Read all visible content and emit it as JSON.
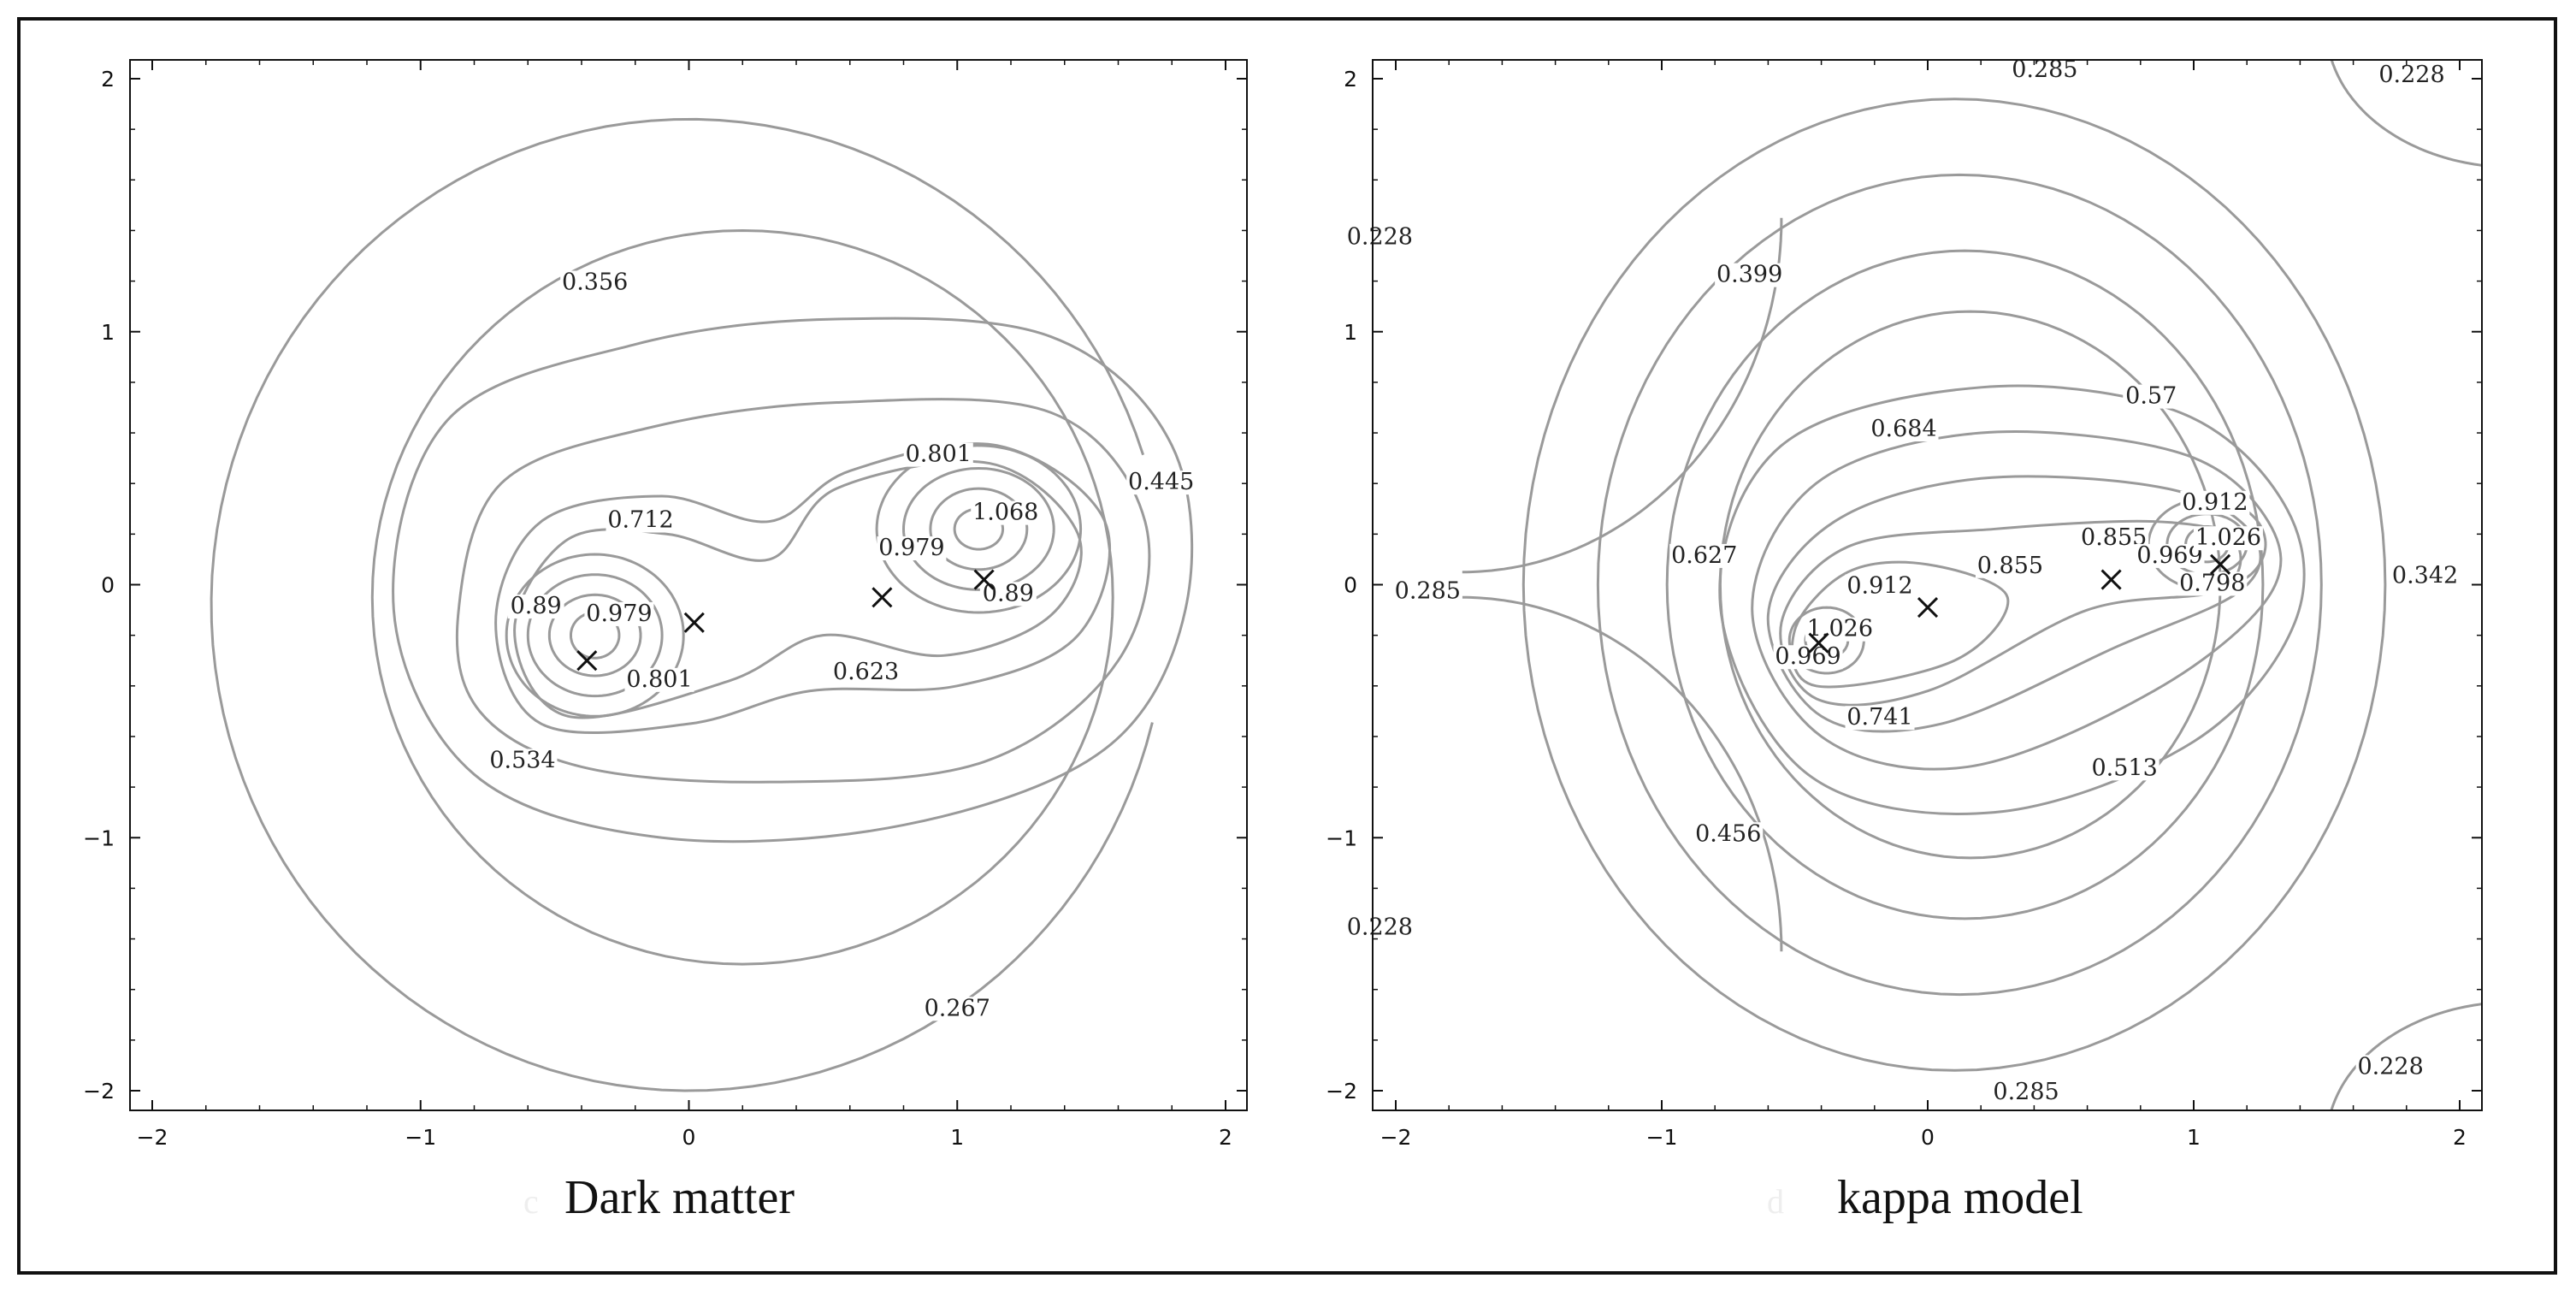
{
  "chart_data": [
    {
      "type": "contour",
      "title": "Dark matter",
      "panel_letter": "c",
      "xlim": [
        -2,
        2
      ],
      "ylim": [
        -2,
        2
      ],
      "xticks": [
        -2,
        -1,
        0,
        1,
        2
      ],
      "yticks": [
        -2,
        -1,
        0,
        1,
        2
      ],
      "xtick_labels": [
        "−2",
        "−1",
        "0",
        "1",
        "2"
      ],
      "ytick_labels": [
        "−2",
        "−1",
        "0",
        "1",
        "2"
      ],
      "grid": false,
      "contour_levels": [
        "0.267",
        "0.356",
        "0.445",
        "0.534",
        "0.623",
        "0.712",
        "0.801",
        "0.89",
        "0.979",
        "1.068"
      ],
      "contour_labels": [
        {
          "text": "0.356",
          "x": -0.35,
          "y": 1.18
        },
        {
          "text": "0.445",
          "x": 1.76,
          "y": 0.39
        },
        {
          "text": "0.801",
          "x": 0.93,
          "y": 0.5
        },
        {
          "text": "1.068",
          "x": 1.18,
          "y": 0.27
        },
        {
          "text": "0.712",
          "x": -0.18,
          "y": 0.24
        },
        {
          "text": "0.979",
          "x": 0.83,
          "y": 0.13
        },
        {
          "text": "0.89",
          "x": -0.57,
          "y": -0.1
        },
        {
          "text": "0.979",
          "x": -0.26,
          "y": -0.13
        },
        {
          "text": "0.89",
          "x": 1.19,
          "y": -0.05
        },
        {
          "text": "0.801",
          "x": -0.11,
          "y": -0.39
        },
        {
          "text": "0.623",
          "x": 0.66,
          "y": -0.36
        },
        {
          "text": "0.534",
          "x": -0.62,
          "y": -0.71
        },
        {
          "text": "0.267",
          "x": 1.0,
          "y": -1.69
        }
      ],
      "markers": [
        {
          "x": -0.38,
          "y": -0.3
        },
        {
          "x": 0.02,
          "y": -0.15
        },
        {
          "x": 0.72,
          "y": -0.05
        },
        {
          "x": 1.1,
          "y": 0.02
        }
      ],
      "colors": {
        "contour": "#9a9a9a",
        "marker": "#111111"
      }
    },
    {
      "type": "contour",
      "title": "kappa model",
      "panel_letter": "d",
      "xlim": [
        -2,
        2
      ],
      "ylim": [
        -2,
        2
      ],
      "xticks": [
        -2,
        -1,
        0,
        1,
        2
      ],
      "yticks": [
        -2,
        -1,
        0,
        1,
        2
      ],
      "xtick_labels": [
        "−2",
        "−1",
        "0",
        "1",
        "2"
      ],
      "ytick_labels": [
        "−2",
        "−1",
        "0",
        "1",
        "2"
      ],
      "grid": false,
      "contour_levels": [
        "0.228",
        "0.285",
        "0.342",
        "0.399",
        "0.456",
        "0.513",
        "0.57",
        "0.627",
        "0.684",
        "0.741",
        "0.798",
        "0.855",
        "0.912",
        "0.969",
        "1.026"
      ],
      "contour_labels": [
        {
          "text": "0.285",
          "x": 0.44,
          "y": 2.02
        },
        {
          "text": "0.228",
          "x": 1.82,
          "y": 2.0
        },
        {
          "text": "0.228",
          "x": -2.06,
          "y": 1.36
        },
        {
          "text": "0.399",
          "x": -0.67,
          "y": 1.21
        },
        {
          "text": "0.57",
          "x": 0.84,
          "y": 0.73
        },
        {
          "text": "0.684",
          "x": -0.09,
          "y": 0.6
        },
        {
          "text": "0.912",
          "x": 1.08,
          "y": 0.31
        },
        {
          "text": "0.855",
          "x": 0.7,
          "y": 0.17
        },
        {
          "text": "0.969",
          "x": 0.91,
          "y": 0.1
        },
        {
          "text": "1.026",
          "x": 1.13,
          "y": 0.17
        },
        {
          "text": "0.798",
          "x": 1.07,
          "y": -0.01
        },
        {
          "text": "0.627",
          "x": -0.84,
          "y": 0.1
        },
        {
          "text": "0.855",
          "x": 0.31,
          "y": 0.06
        },
        {
          "text": "0.912",
          "x": -0.18,
          "y": -0.02
        },
        {
          "text": "0.342",
          "x": 1.87,
          "y": 0.02
        },
        {
          "text": "0.285",
          "x": -1.88,
          "y": -0.04
        },
        {
          "text": "1.026",
          "x": -0.33,
          "y": -0.19
        },
        {
          "text": "0.969",
          "x": -0.45,
          "y": -0.3
        },
        {
          "text": "0.741",
          "x": -0.18,
          "y": -0.54
        },
        {
          "text": "0.513",
          "x": 0.74,
          "y": -0.74
        },
        {
          "text": "0.456",
          "x": -0.75,
          "y": -1.0
        },
        {
          "text": "0.228",
          "x": -2.06,
          "y": -1.37
        },
        {
          "text": "0.228",
          "x": 1.74,
          "y": -1.92
        },
        {
          "text": "0.285",
          "x": 0.37,
          "y": -2.02
        }
      ],
      "markers": [
        {
          "x": -0.41,
          "y": -0.23
        },
        {
          "x": 0.0,
          "y": -0.09
        },
        {
          "x": 0.69,
          "y": 0.02
        },
        {
          "x": 1.1,
          "y": 0.08
        }
      ],
      "colors": {
        "contour": "#9a9a9a",
        "marker": "#111111"
      }
    }
  ]
}
